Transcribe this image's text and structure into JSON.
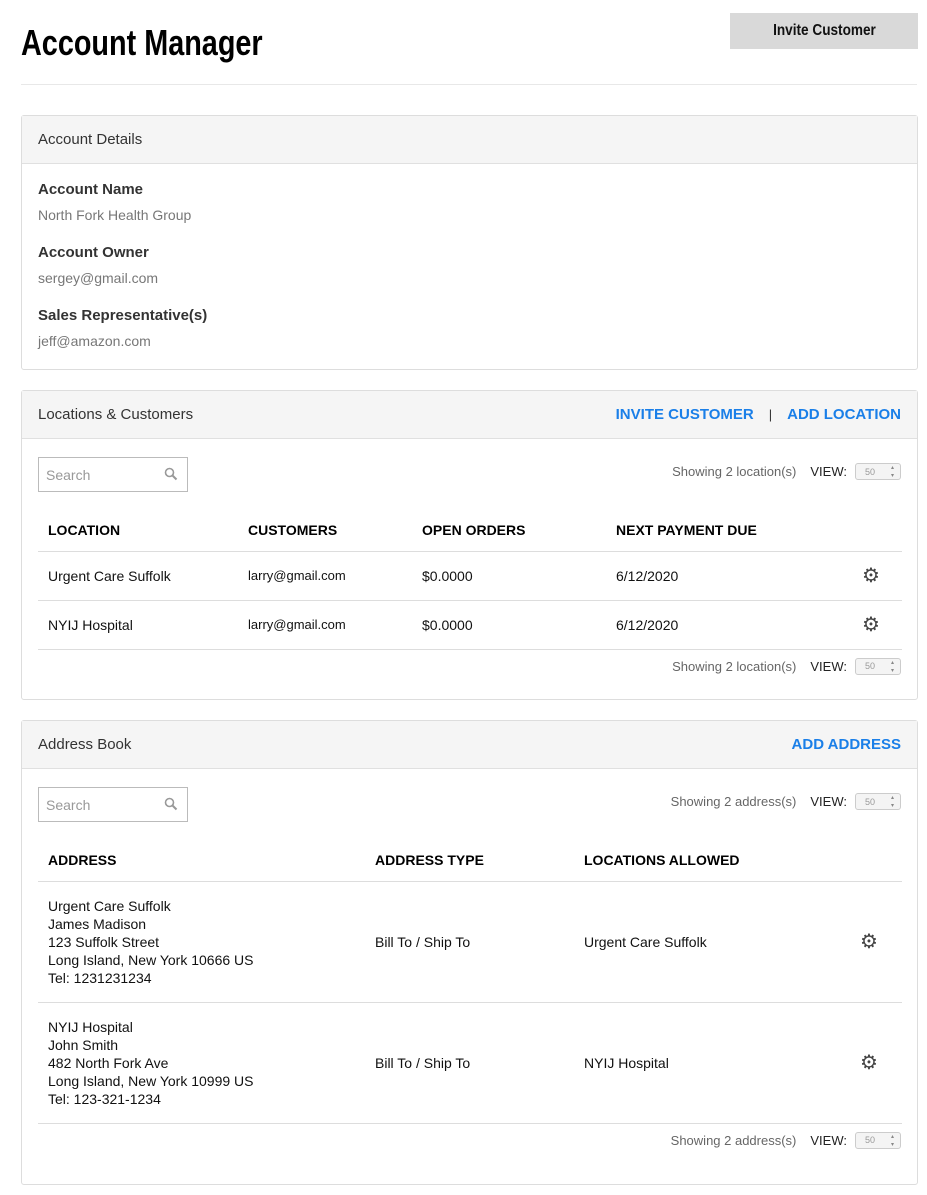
{
  "header": {
    "title": "Account Manager",
    "invite_button": "Invite Customer"
  },
  "account_details": {
    "title": "Account Details",
    "fields": [
      {
        "label": "Account Name",
        "value": "North Fork Health Group"
      },
      {
        "label": "Account Owner",
        "value": "sergey@gmail.com"
      },
      {
        "label": "Sales Representative(s)",
        "value": "jeff@amazon.com"
      }
    ]
  },
  "locations": {
    "title": "Locations & Customers",
    "invite_link": "INVITE CUSTOMER",
    "separator": "|",
    "add_link": "ADD LOCATION",
    "search_placeholder": "Search",
    "showing": "Showing 2 location(s)",
    "view_label": "VIEW:",
    "view_value": "50",
    "columns": [
      "LOCATION",
      "CUSTOMERS",
      "OPEN ORDERS",
      "NEXT PAYMENT DUE"
    ],
    "rows": [
      [
        "Urgent Care Suffolk",
        "larry@gmail.com",
        "$0.0000",
        "6/12/2020"
      ],
      [
        "NYIJ Hospital",
        "larry@gmail.com",
        "$0.0000",
        "6/12/2020"
      ]
    ]
  },
  "address_book": {
    "title": "Address Book",
    "add_link": "ADD ADDRESS",
    "search_placeholder": "Search",
    "showing": "Showing 2 address(s)",
    "view_label": "VIEW:",
    "view_value": "50",
    "columns": [
      "ADDRESS",
      "ADDRESS TYPE",
      "LOCATIONS ALLOWED"
    ],
    "rows": [
      {
        "address": [
          "Urgent Care Suffolk",
          "James Madison",
          "123 Suffolk Street",
          "Long Island, New York 10666 US",
          "Tel: 1231231234"
        ],
        "type": "Bill To / Ship To",
        "allowed": "Urgent Care Suffolk"
      },
      {
        "address": [
          "NYIJ Hospital",
          "John Smith",
          "482 North Fork Ave",
          "Long Island, New York 10999 US",
          "Tel: 123-321-1234"
        ],
        "type": "Bill To / Ship To",
        "allowed": "NYIJ Hospital"
      }
    ]
  },
  "colors": {
    "link": "#1a7fe8",
    "button_bg": "#d9d9d9",
    "panel_header_bg": "#f5f5f5"
  }
}
